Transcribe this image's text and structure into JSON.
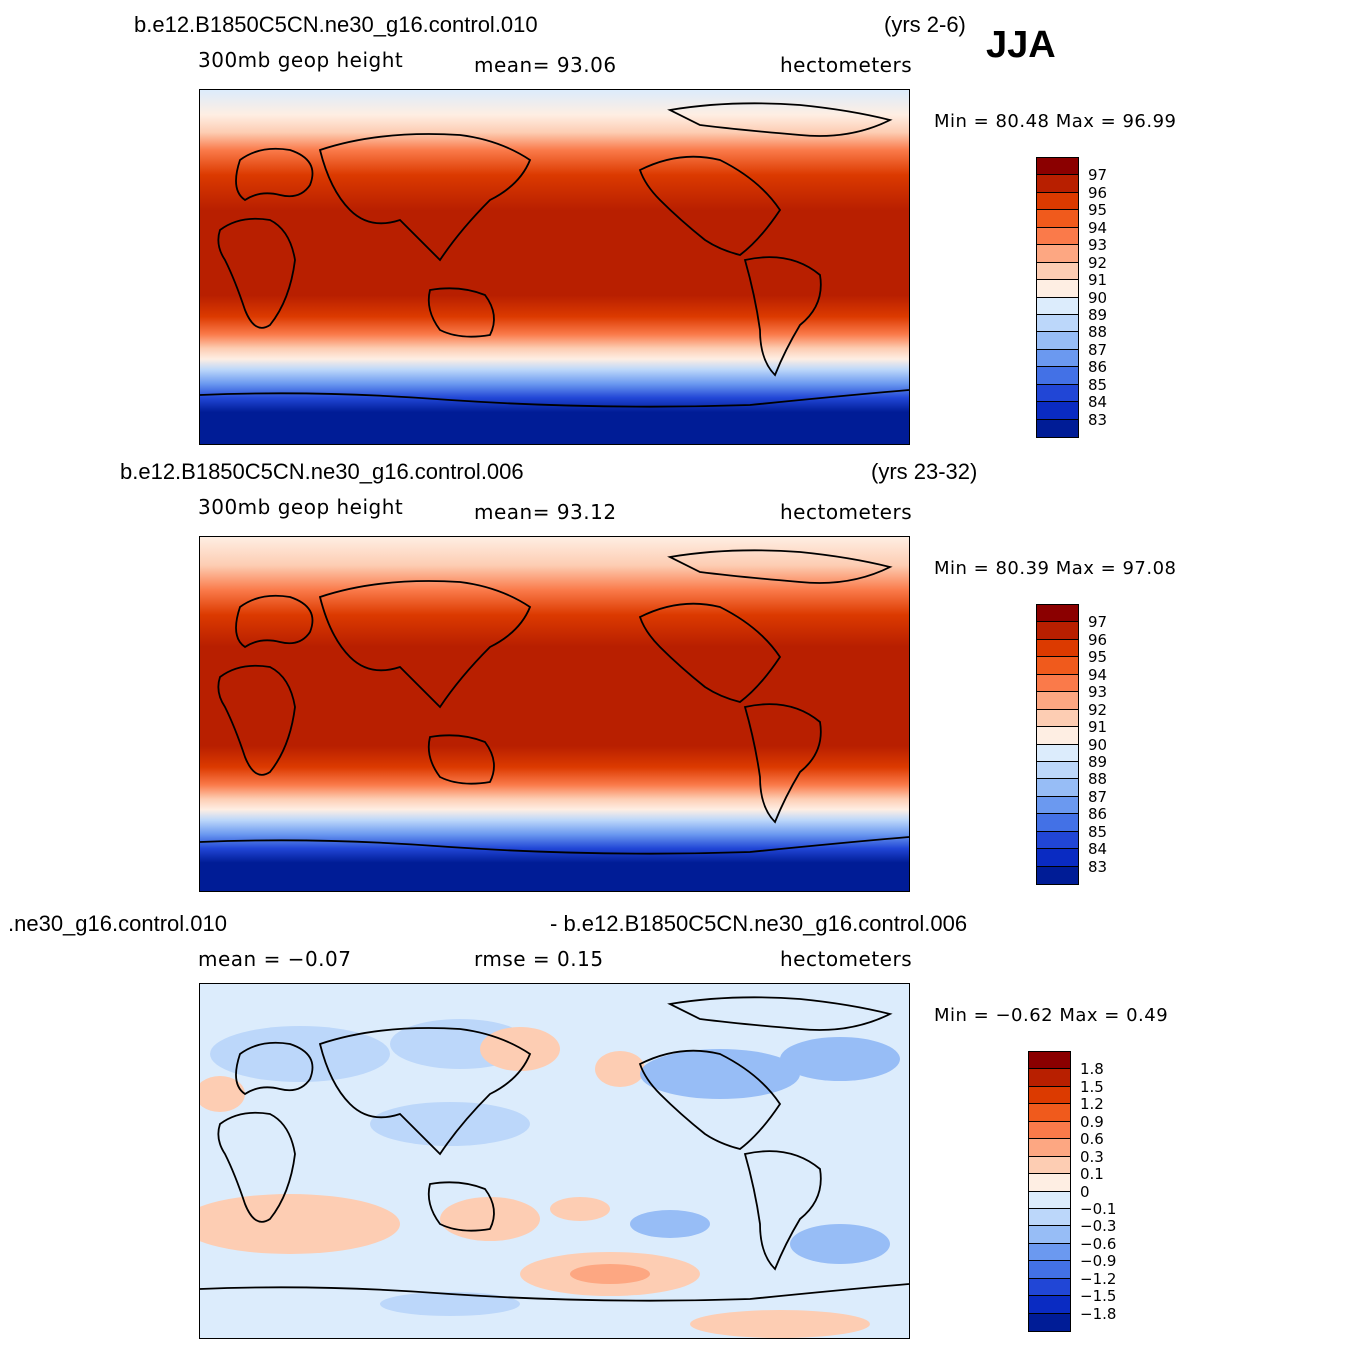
{
  "season": "JJA",
  "panels": [
    {
      "case": "b.e12.B1850C5CN.ne30_g16.control.010",
      "years": "(yrs 2-6)",
      "variable": "300mb  geop  height",
      "stat1": "mean=   93.06",
      "units": "hectometers",
      "minmax": "Min =   80.48  Max =    96.99",
      "legend_levels": [
        "97",
        "96",
        "95",
        "94",
        "93",
        "92",
        "91",
        "90",
        "89",
        "88",
        "87",
        "86",
        "85",
        "84",
        "83"
      ],
      "legend_colors": [
        "#8b0000",
        "#b81f00",
        "#dc3a00",
        "#f05a1c",
        "#fa7a4a",
        "#fda782",
        "#fdcdb3",
        "#feeee3",
        "#dcecfc",
        "#bcd7fa",
        "#97bdf6",
        "#6b99f0",
        "#4371e6",
        "#2146d6",
        "#0a2bc2",
        "#001c96"
      ]
    },
    {
      "case": "b.e12.B1850C5CN.ne30_g16.control.006",
      "years": "(yrs 23-32)",
      "variable": "300mb  geop  height",
      "stat1": "mean=   93.12",
      "units": "hectometers",
      "minmax": "Min =   80.39  Max =    97.08",
      "legend_levels": [
        "97",
        "96",
        "95",
        "94",
        "93",
        "92",
        "91",
        "90",
        "89",
        "88",
        "87",
        "86",
        "85",
        "84",
        "83"
      ],
      "legend_colors": [
        "#8b0000",
        "#b81f00",
        "#dc3a00",
        "#f05a1c",
        "#fa7a4a",
        "#fda782",
        "#fdcdb3",
        "#feeee3",
        "#dcecfc",
        "#bcd7fa",
        "#97bdf6",
        "#6b99f0",
        "#4371e6",
        "#2146d6",
        "#0a2bc2",
        "#001c96"
      ]
    },
    {
      "case_left": ".ne30_g16.control.010",
      "case_right": "- b.e12.B1850C5CN.ne30_g16.control.006",
      "stat1": "mean =   −0.07",
      "stat2": "rmse =     0.15",
      "units": "hectometers",
      "minmax": "Min =   −0.62  Max =     0.49",
      "legend_levels": [
        "1.8",
        "1.5",
        "1.2",
        "0.9",
        "0.6",
        "0.3",
        "0.1",
        "0",
        "−0.1",
        "−0.3",
        "−0.6",
        "−0.9",
        "−1.2",
        "−1.5",
        "−1.8"
      ],
      "legend_colors": [
        "#8b0000",
        "#b81f00",
        "#dc3a00",
        "#f05a1c",
        "#fa7a4a",
        "#fda782",
        "#fdcdb3",
        "#feeee3",
        "#dcecfc",
        "#bcd7fa",
        "#97bdf6",
        "#6b99f0",
        "#4371e6",
        "#2146d6",
        "#0a2bc2",
        "#001c96"
      ]
    }
  ]
}
